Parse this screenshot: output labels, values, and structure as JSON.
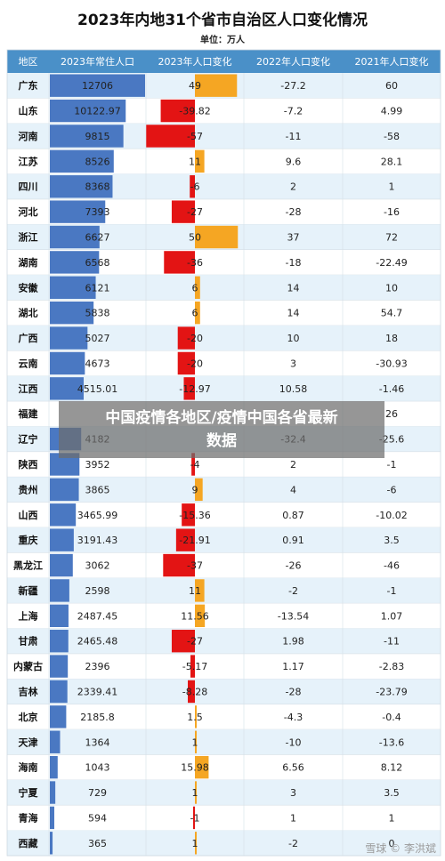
{
  "chart_data": {
    "type": "table",
    "title": "2023年内地31个省市自治区人口变化情况",
    "subtitle": "单位：万人",
    "columns": [
      "地区",
      "2023年常住人口",
      "2023年人口变化",
      "2022年人口变化",
      "2021年人口变化"
    ],
    "rows": [
      {
        "region": "广东",
        "pop2023": "12706",
        "chg2023": "49",
        "chg2022": "-27.2",
        "chg2021": "60"
      },
      {
        "region": "山东",
        "pop2023": "10122.97",
        "chg2023": "-39.82",
        "chg2022": "-7.2",
        "chg2021": "4.99"
      },
      {
        "region": "河南",
        "pop2023": "9815",
        "chg2023": "-57",
        "chg2022": "-11",
        "chg2021": "-58"
      },
      {
        "region": "江苏",
        "pop2023": "8526",
        "chg2023": "11",
        "chg2022": "9.6",
        "chg2021": "28.1"
      },
      {
        "region": "四川",
        "pop2023": "8368",
        "chg2023": "-6",
        "chg2022": "2",
        "chg2021": "1"
      },
      {
        "region": "河北",
        "pop2023": "7393",
        "chg2023": "-27",
        "chg2022": "-28",
        "chg2021": "-16"
      },
      {
        "region": "浙江",
        "pop2023": "6627",
        "chg2023": "50",
        "chg2022": "37",
        "chg2021": "72"
      },
      {
        "region": "湖南",
        "pop2023": "6568",
        "chg2023": "-36",
        "chg2022": "-18",
        "chg2021": "-22.49"
      },
      {
        "region": "安徽",
        "pop2023": "6121",
        "chg2023": "6",
        "chg2022": "14",
        "chg2021": "10"
      },
      {
        "region": "湖北",
        "pop2023": "5838",
        "chg2023": "6",
        "chg2022": "14",
        "chg2021": "54.7"
      },
      {
        "region": "广西",
        "pop2023": "5027",
        "chg2023": "-20",
        "chg2022": "10",
        "chg2021": "18"
      },
      {
        "region": "云南",
        "pop2023": "4673",
        "chg2023": "-20",
        "chg2022": "3",
        "chg2021": "-30.93"
      },
      {
        "region": "江西",
        "pop2023": "4515.01",
        "chg2023": "-12.97",
        "chg2022": "10.58",
        "chg2021": "-1.46"
      },
      {
        "region": "福建",
        "pop2023": "",
        "chg2023": "",
        "chg2022": "",
        "chg2021": "26"
      },
      {
        "region": "辽宁",
        "pop2023": "4182",
        "chg2023": "",
        "chg2022": "-32.4",
        "chg2021": "-25.6"
      },
      {
        "region": "陕西",
        "pop2023": "3952",
        "chg2023": "-4",
        "chg2022": "2",
        "chg2021": "-1"
      },
      {
        "region": "贵州",
        "pop2023": "3865",
        "chg2023": "9",
        "chg2022": "4",
        "chg2021": "-6"
      },
      {
        "region": "山西",
        "pop2023": "3465.99",
        "chg2023": "-15.36",
        "chg2022": "0.87",
        "chg2021": "-10.02"
      },
      {
        "region": "重庆",
        "pop2023": "3191.43",
        "chg2023": "-21.91",
        "chg2022": "0.91",
        "chg2021": "3.5"
      },
      {
        "region": "黑龙江",
        "pop2023": "3062",
        "chg2023": "-37",
        "chg2022": "-26",
        "chg2021": "-46"
      },
      {
        "region": "新疆",
        "pop2023": "2598",
        "chg2023": "11",
        "chg2022": "-2",
        "chg2021": "-1"
      },
      {
        "region": "上海",
        "pop2023": "2487.45",
        "chg2023": "11.56",
        "chg2022": "-13.54",
        "chg2021": "1.07"
      },
      {
        "region": "甘肃",
        "pop2023": "2465.48",
        "chg2023": "-27",
        "chg2022": "1.98",
        "chg2021": "-11"
      },
      {
        "region": "内蒙古",
        "pop2023": "2396",
        "chg2023": "-5.17",
        "chg2022": "1.17",
        "chg2021": "-2.83"
      },
      {
        "region": "吉林",
        "pop2023": "2339.41",
        "chg2023": "-8.28",
        "chg2022": "-28",
        "chg2021": "-23.79"
      },
      {
        "region": "北京",
        "pop2023": "2185.8",
        "chg2023": "1.5",
        "chg2022": "-4.3",
        "chg2021": "-0.4"
      },
      {
        "region": "天津",
        "pop2023": "1364",
        "chg2023": "1",
        "chg2022": "-10",
        "chg2021": "-13.6"
      },
      {
        "region": "海南",
        "pop2023": "1043",
        "chg2023": "15.98",
        "chg2022": "6.56",
        "chg2021": "8.12"
      },
      {
        "region": "宁夏",
        "pop2023": "729",
        "chg2023": "1",
        "chg2022": "3",
        "chg2021": "3.5"
      },
      {
        "region": "青海",
        "pop2023": "594",
        "chg2023": "-1",
        "chg2022": "1",
        "chg2021": "1"
      },
      {
        "region": "西藏",
        "pop2023": "365",
        "chg2023": "1",
        "chg2022": "-2",
        "chg2021": "0"
      }
    ],
    "pop_bar_max": 12706,
    "chg_bar_max": 57,
    "bar_colors": {
      "population": "#4a78c2",
      "increase": "#f5a623",
      "decrease": "#e31414"
    },
    "header_color": "#4a90c8",
    "alt_row_color": "#e6f2fa"
  },
  "overlay": {
    "banner_line1": "中国疫情各地区/疫情中国各省最新",
    "banner_line2": "数据",
    "watermark": "雪球 © 李洪斌"
  }
}
